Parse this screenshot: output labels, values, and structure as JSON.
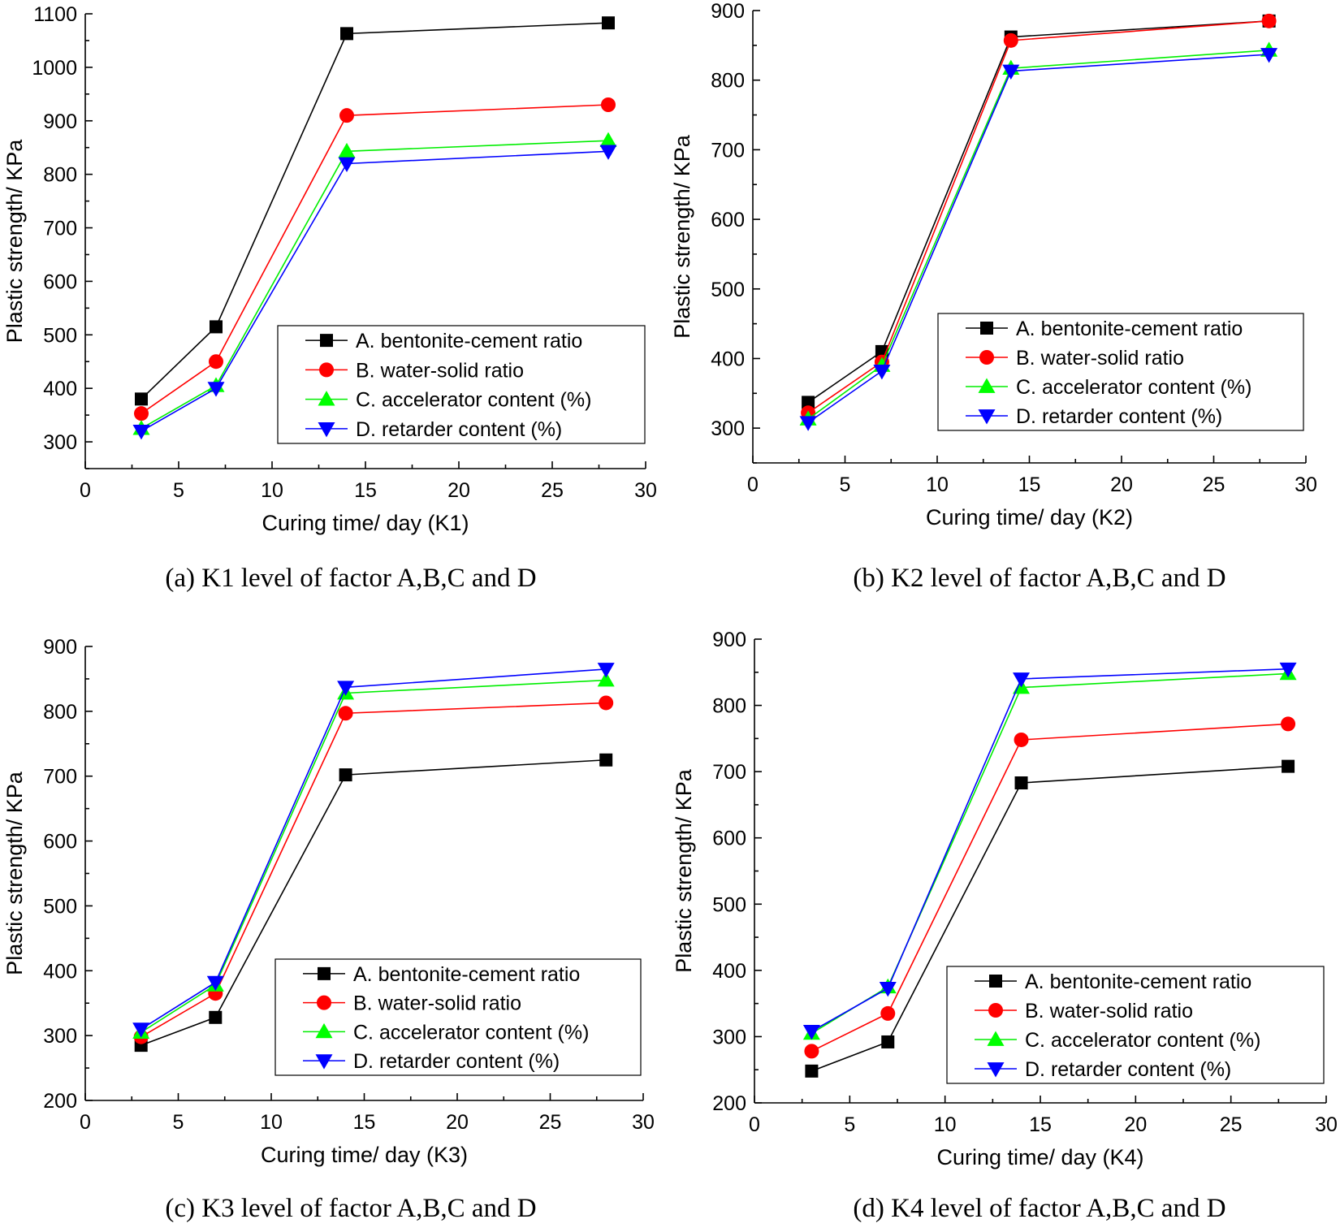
{
  "figure": {
    "palette": {
      "A": {
        "color": "#000000",
        "fill": "#000000",
        "marker": "square"
      },
      "B": {
        "color": "#ff0000",
        "fill": "#ff0000",
        "marker": "circle"
      },
      "C": {
        "color": "#00ee00",
        "fill": "#00ff00",
        "marker": "triangle-up"
      },
      "D": {
        "color": "#0000ff",
        "fill": "#0000ff",
        "marker": "triangle-down"
      }
    }
  },
  "chart_data": [
    {
      "type": "line",
      "caption": "(a) K1 level of factor A,B,C and D",
      "xlabel": "Curing time/ day (K1)",
      "ylabel": "Plastic strength/ KPa",
      "xlim": [
        0,
        30
      ],
      "ylim": [
        250,
        1100
      ],
      "xticks": [
        0,
        5,
        10,
        15,
        20,
        25,
        30
      ],
      "yticks": [
        300,
        400,
        500,
        600,
        700,
        800,
        900,
        1000,
        1100
      ],
      "legend_position": "bottom-right",
      "x": [
        3,
        7,
        14,
        28
      ],
      "series": [
        {
          "key": "A",
          "name": "A. bentonite-cement ratio",
          "values": [
            380,
            515,
            1063,
            1083
          ]
        },
        {
          "key": "B",
          "name": "B. water-solid ratio",
          "values": [
            353,
            450,
            910,
            930
          ]
        },
        {
          "key": "C",
          "name": "C. accelerator content (%)",
          "values": [
            325,
            405,
            843,
            863
          ]
        },
        {
          "key": "D",
          "name": "D. retarder content (%)",
          "values": [
            320,
            400,
            820,
            843
          ]
        }
      ]
    },
    {
      "type": "line",
      "caption": "(b) K2 level of factor A,B,C and D",
      "xlabel": "Curing time/ day (K2)",
      "ylabel": "Plastic strength/ KPa",
      "xlim": [
        0,
        30
      ],
      "ylim": [
        250,
        900
      ],
      "xticks": [
        0,
        5,
        10,
        15,
        20,
        25,
        30
      ],
      "yticks": [
        300,
        400,
        500,
        600,
        700,
        800,
        900
      ],
      "legend_position": "bottom-right",
      "x": [
        3,
        7,
        14,
        28
      ],
      "series": [
        {
          "key": "A",
          "name": "A. bentonite-cement ratio",
          "values": [
            337,
            410,
            862,
            885
          ]
        },
        {
          "key": "B",
          "name": "B. water-solid ratio",
          "values": [
            322,
            395,
            857,
            885
          ]
        },
        {
          "key": "C",
          "name": "C. accelerator content (%)",
          "values": [
            313,
            390,
            817,
            843
          ]
        },
        {
          "key": "D",
          "name": "D. retarder content (%)",
          "values": [
            308,
            382,
            813,
            837
          ]
        }
      ]
    },
    {
      "type": "line",
      "caption": "(c) K3 level of factor A,B,C and D",
      "xlabel": "Curing time/ day (K3)",
      "ylabel": "Plastic strength/ KPa",
      "xlim": [
        0,
        30
      ],
      "ylim": [
        200,
        900
      ],
      "xticks": [
        0,
        5,
        10,
        15,
        20,
        25,
        30
      ],
      "yticks": [
        200,
        300,
        400,
        500,
        600,
        700,
        800,
        900
      ],
      "legend_position": "bottom-right",
      "x": [
        3,
        7,
        14,
        28
      ],
      "series": [
        {
          "key": "A",
          "name": "A. bentonite-cement ratio",
          "values": [
            285,
            328,
            702,
            725
          ]
        },
        {
          "key": "B",
          "name": "B. water-solid ratio",
          "values": [
            298,
            365,
            797,
            813
          ]
        },
        {
          "key": "C",
          "name": "C. accelerator content (%)",
          "values": [
            305,
            378,
            828,
            848
          ]
        },
        {
          "key": "D",
          "name": "D. retarder content (%)",
          "values": [
            310,
            382,
            837,
            865
          ]
        }
      ]
    },
    {
      "type": "line",
      "caption": "(d) K4 level of factor A,B,C and D",
      "xlabel": "Curing time/ day (K4)",
      "ylabel": "Plastic strength/ KPa",
      "xlim": [
        0,
        30
      ],
      "ylim": [
        200,
        900
      ],
      "xticks": [
        0,
        5,
        10,
        15,
        20,
        25,
        30
      ],
      "yticks": [
        200,
        300,
        400,
        500,
        600,
        700,
        800,
        900
      ],
      "legend_position": "bottom-right",
      "x": [
        3,
        7,
        14,
        28
      ],
      "series": [
        {
          "key": "A",
          "name": "A. bentonite-cement ratio",
          "values": [
            248,
            292,
            683,
            708
          ]
        },
        {
          "key": "B",
          "name": "B. water-solid ratio",
          "values": [
            278,
            335,
            748,
            772
          ]
        },
        {
          "key": "C",
          "name": "C. accelerator content (%)",
          "values": [
            305,
            375,
            827,
            848
          ]
        },
        {
          "key": "D",
          "name": "D. retarder content (%)",
          "values": [
            308,
            373,
            840,
            855
          ]
        }
      ]
    }
  ]
}
